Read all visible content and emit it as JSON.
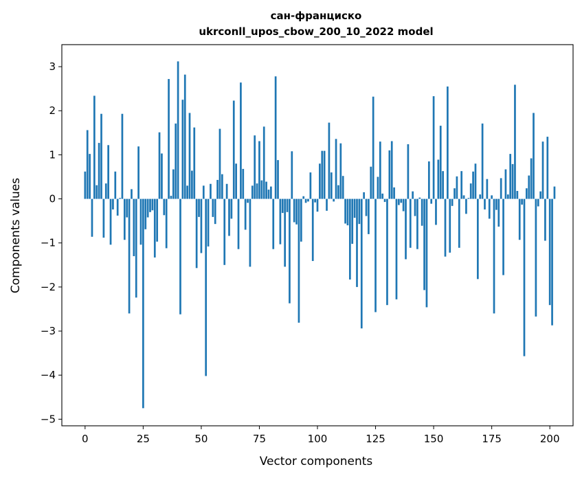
{
  "chart_data": {
    "type": "bar",
    "title_line1": "сан-франциско",
    "title_line2": "ukrconll_upos_cbow_200_10_2022 model",
    "xlabel": "Vector components",
    "ylabel": "Components values",
    "xlim": [
      -10,
      210
    ],
    "ylim": [
      -5.15,
      3.5
    ],
    "x_ticks": [
      0,
      25,
      50,
      75,
      100,
      125,
      150,
      175,
      200
    ],
    "y_ticks": [
      -5,
      -4,
      -3,
      -2,
      -1,
      0,
      1,
      2,
      3
    ],
    "x_tick_labels": [
      "0",
      "25",
      "50",
      "75",
      "100",
      "125",
      "150",
      "175",
      "200"
    ],
    "y_tick_labels": [
      "−5",
      "−4",
      "−3",
      "−2",
      "−1",
      "0",
      "1",
      "2",
      "3"
    ],
    "bar_color": "#1f77b4",
    "values": [
      0.62,
      1.56,
      1.02,
      -0.86,
      2.34,
      0.31,
      1.27,
      1.93,
      -0.88,
      0.35,
      1.22,
      -1.04,
      -0.24,
      0.62,
      -0.38,
      0.02,
      1.93,
      -0.93,
      -0.42,
      -2.6,
      0.22,
      -1.3,
      -2.24,
      1.19,
      -1.04,
      -4.75,
      -0.69,
      -0.42,
      -0.3,
      -0.26,
      -1.33,
      -0.97,
      1.51,
      1.03,
      -0.37,
      -1.12,
      2.72,
      0.07,
      0.67,
      1.71,
      3.12,
      -2.62,
      2.25,
      2.82,
      0.3,
      1.95,
      0.64,
      1.62,
      -1.57,
      -0.41,
      -1.23,
      0.3,
      -4.02,
      -1.08,
      0.34,
      -0.41,
      -0.57,
      0.43,
      1.59,
      0.56,
      -1.5,
      0.34,
      -0.84,
      -0.45,
      2.23,
      0.8,
      -1.14,
      2.64,
      0.68,
      -0.7,
      -0.09,
      -1.54,
      0.3,
      1.44,
      0.35,
      1.31,
      0.42,
      1.64,
      0.39,
      0.21,
      0.28,
      -1.14,
      2.78,
      0.88,
      -1.03,
      -0.32,
      -1.54,
      -0.3,
      -2.37,
      1.08,
      -0.53,
      -0.58,
      -2.81,
      -0.97,
      0.06,
      -0.09,
      -0.06,
      0.6,
      -1.41,
      -0.08,
      -0.29,
      0.8,
      1.09,
      1.09,
      -0.27,
      1.73,
      0.6,
      -0.06,
      1.36,
      0.31,
      1.26,
      0.52,
      -0.56,
      -0.6,
      -1.83,
      -1.02,
      -0.43,
      -2.0,
      -0.57,
      -2.94,
      0.15,
      -0.39,
      -0.8,
      0.73,
      2.32,
      -2.57,
      0.5,
      1.3,
      0.12,
      -0.07,
      -2.41,
      1.1,
      1.31,
      0.26,
      -2.28,
      -0.14,
      -0.09,
      -0.28,
      -1.37,
      1.24,
      -1.11,
      0.17,
      -0.39,
      -1.14,
      0.03,
      -0.61,
      -2.07,
      -2.46,
      0.85,
      -0.11,
      2.33,
      -0.59,
      0.89,
      1.66,
      0.63,
      -1.31,
      2.55,
      -1.22,
      -0.16,
      0.24,
      0.51,
      -1.11,
      0.63,
      0.08,
      -0.34,
      0.02,
      0.35,
      0.62,
      0.8,
      -1.82,
      0.1,
      1.71,
      -0.24,
      0.45,
      -0.45,
      0.08,
      -2.6,
      -0.25,
      -0.63,
      0.47,
      -1.73,
      0.67,
      0.1,
      1.02,
      0.79,
      2.59,
      0.18,
      -0.93,
      -0.13,
      -3.57,
      0.24,
      0.53,
      0.92,
      1.95,
      -2.67,
      -0.17,
      0.17,
      1.3,
      -0.95,
      1.41,
      -2.41,
      -2.87,
      0.28
    ]
  }
}
